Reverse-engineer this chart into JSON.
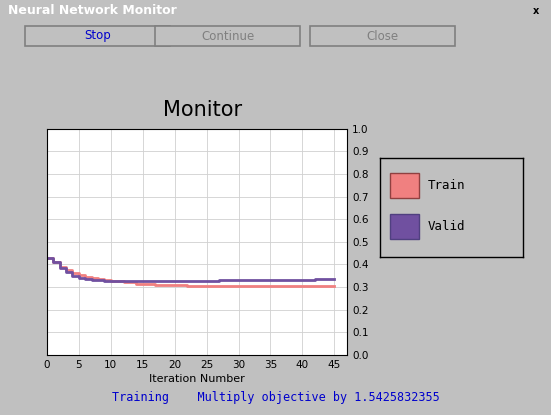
{
  "title": "Monitor",
  "xlabel": "Iteration Number",
  "window_title": "Neural Network Monitor",
  "status_text": "Training    Multiply objective by 1.5425832355",
  "button_labels": [
    "Stop",
    "Continue",
    "Close"
  ],
  "yticks": [
    0.0,
    0.1,
    0.2,
    0.3,
    0.4,
    0.5,
    0.6,
    0.7,
    0.8,
    0.9,
    1.0
  ],
  "xticks": [
    0,
    5,
    10,
    15,
    20,
    25,
    30,
    35,
    40,
    45
  ],
  "xlim": [
    0,
    47
  ],
  "ylim": [
    0.0,
    1.0
  ],
  "bg_color": "#c0c0c0",
  "plot_bg_color": "#ffffff",
  "window_title_bg": "#000080",
  "window_title_fg": "#ffffff",
  "status_color": "#0000cc",
  "train_color": "#f08080",
  "valid_color": "#7050a0",
  "legend_labels": [
    "Train",
    "Valid"
  ],
  "train_x": [
    0,
    1,
    2,
    3,
    4,
    5,
    6,
    7,
    8,
    9,
    10,
    11,
    12,
    13,
    14,
    15,
    16,
    17,
    18,
    19,
    20,
    21,
    22,
    23,
    24,
    25,
    26,
    27,
    28,
    29,
    30,
    31,
    32,
    33,
    34,
    35,
    36,
    37,
    38,
    39,
    40,
    41,
    42,
    43,
    44,
    45
  ],
  "train_y": [
    0.43,
    0.41,
    0.39,
    0.375,
    0.36,
    0.355,
    0.345,
    0.34,
    0.335,
    0.33,
    0.325,
    0.325,
    0.32,
    0.32,
    0.315,
    0.315,
    0.315,
    0.31,
    0.31,
    0.31,
    0.31,
    0.31,
    0.305,
    0.305,
    0.305,
    0.305,
    0.305,
    0.305,
    0.305,
    0.305,
    0.305,
    0.305,
    0.305,
    0.305,
    0.305,
    0.305,
    0.305,
    0.305,
    0.305,
    0.305,
    0.305,
    0.305,
    0.305,
    0.305,
    0.305,
    0.305
  ],
  "valid_x": [
    0,
    1,
    2,
    3,
    4,
    5,
    6,
    7,
    8,
    9,
    10,
    11,
    12,
    13,
    14,
    15,
    16,
    17,
    18,
    19,
    20,
    21,
    22,
    23,
    24,
    25,
    26,
    27,
    28,
    29,
    30,
    31,
    32,
    33,
    34,
    35,
    36,
    37,
    38,
    39,
    40,
    41,
    42,
    43,
    44,
    45
  ],
  "valid_y": [
    0.43,
    0.41,
    0.385,
    0.365,
    0.35,
    0.34,
    0.335,
    0.33,
    0.33,
    0.325,
    0.325,
    0.325,
    0.325,
    0.325,
    0.325,
    0.325,
    0.325,
    0.325,
    0.325,
    0.325,
    0.325,
    0.325,
    0.325,
    0.325,
    0.325,
    0.325,
    0.325,
    0.33,
    0.33,
    0.33,
    0.33,
    0.33,
    0.33,
    0.33,
    0.33,
    0.33,
    0.33,
    0.33,
    0.33,
    0.33,
    0.33,
    0.33,
    0.335,
    0.335,
    0.335,
    0.335
  ]
}
